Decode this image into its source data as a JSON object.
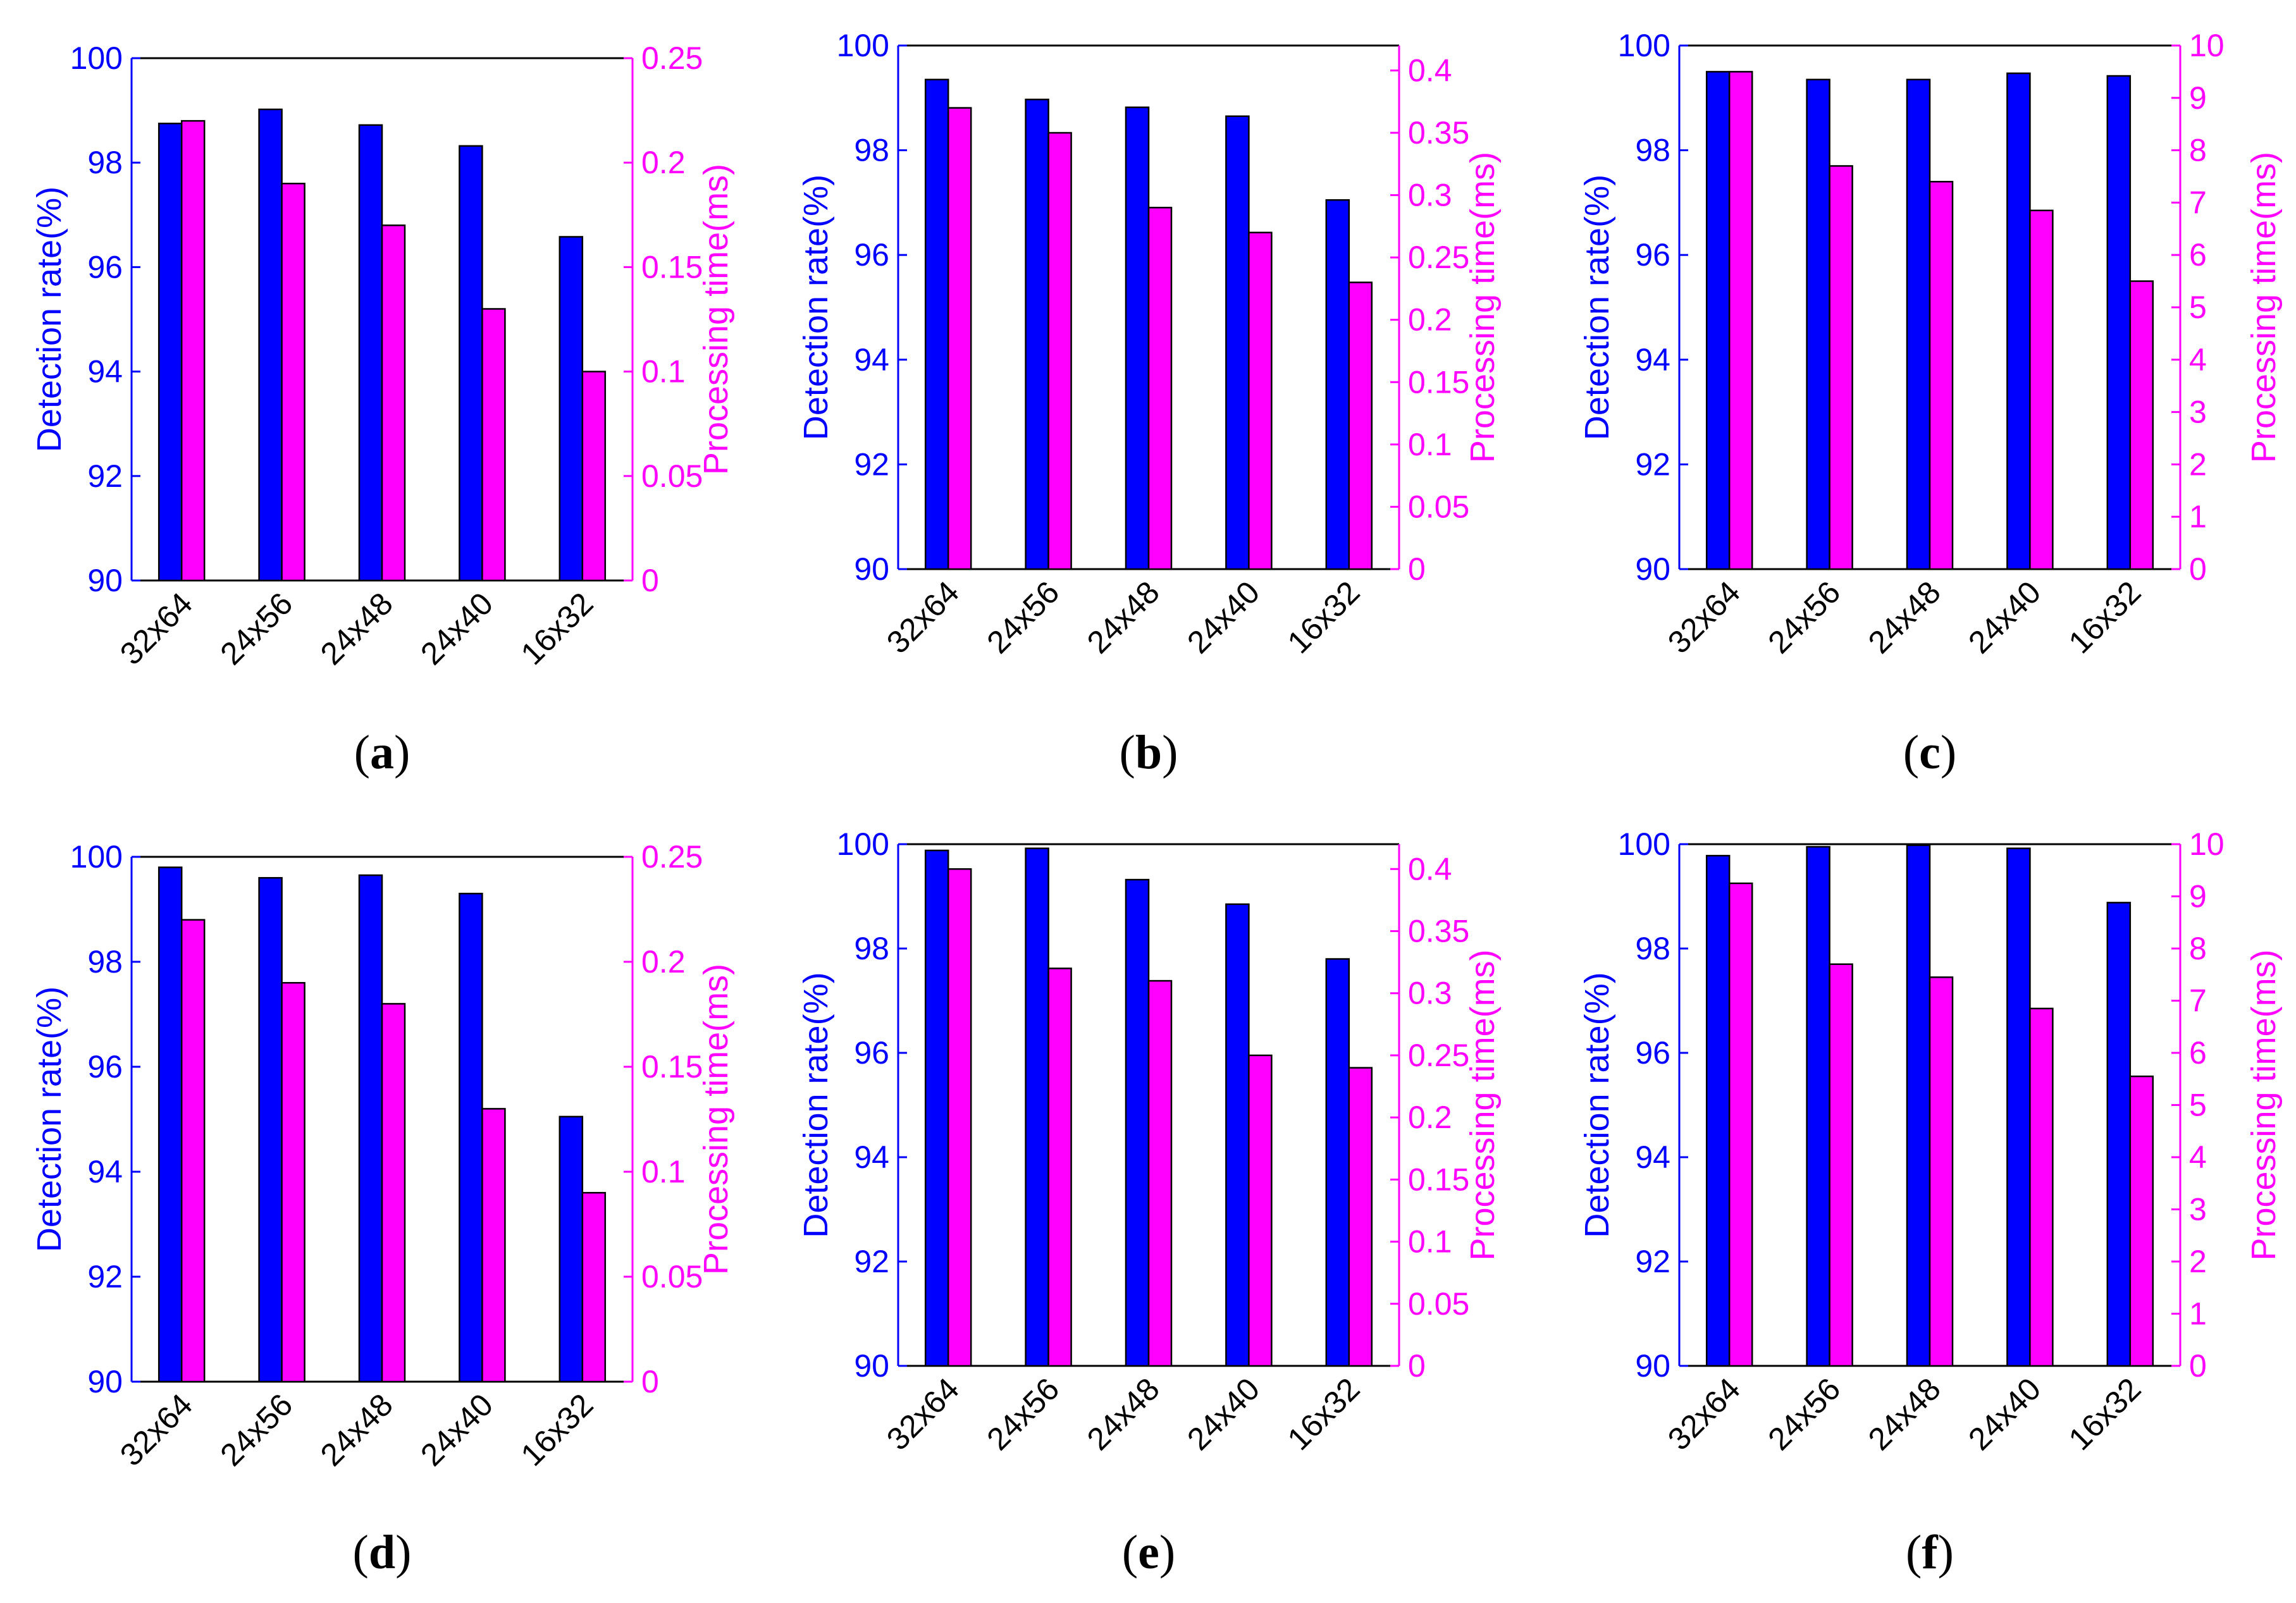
{
  "colors": {
    "detection": "#0000ff",
    "processing": "#ff00ff",
    "axis_left": "#0000ff",
    "axis_right": "#ff00ff",
    "frame": "#000000",
    "background": "#ffffff"
  },
  "chart_data": [
    {
      "type": "bar",
      "panel_label": "a",
      "categories": [
        "32x64",
        "24x56",
        "24x48",
        "24x40",
        "16x32"
      ],
      "series": [
        {
          "name": "Detection rate",
          "axis": "left",
          "values": [
            98.75,
            99.02,
            98.72,
            98.32,
            96.58
          ]
        },
        {
          "name": "Processing time",
          "axis": "right",
          "values": [
            0.22,
            0.19,
            0.17,
            0.13,
            0.1
          ]
        }
      ],
      "ylabel": "Detection rate(%)",
      "y2label": "Processing time(ms)",
      "ylim": [
        90,
        100
      ],
      "y2lim": [
        0,
        0.25
      ],
      "yticks": [
        "90",
        "92",
        "94",
        "96",
        "98",
        "100"
      ],
      "y2ticks": [
        "0",
        "0.05",
        "0.1",
        "0.15",
        "0.2",
        "0.25"
      ]
    },
    {
      "type": "bar",
      "panel_label": "b",
      "categories": [
        "32x64",
        "24x56",
        "24x48",
        "24x40",
        "16x32"
      ],
      "series": [
        {
          "name": "Detection rate",
          "axis": "left",
          "values": [
            99.35,
            98.97,
            98.82,
            98.65,
            97.05
          ]
        },
        {
          "name": "Processing time",
          "axis": "right",
          "values": [
            0.37,
            0.35,
            0.29,
            0.27,
            0.23
          ]
        }
      ],
      "ylabel": "Detection rate(%)",
      "y2label": "Processing time(ms)",
      "ylim": [
        90,
        100
      ],
      "y2lim": [
        0,
        0.42
      ],
      "yticks": [
        "90",
        "92",
        "94",
        "96",
        "98",
        "100"
      ],
      "y2ticks": [
        "0",
        "0.05",
        "0.1",
        "0.15",
        "0.2",
        "0.25",
        "0.3",
        "0.35",
        "0.4"
      ]
    },
    {
      "type": "bar",
      "panel_label": "c",
      "categories": [
        "32x64",
        "24x56",
        "24x48",
        "24x40",
        "16x32"
      ],
      "series": [
        {
          "name": "Detection rate",
          "axis": "left",
          "values": [
            99.5,
            99.35,
            99.35,
            99.47,
            99.42
          ]
        },
        {
          "name": "Processing time",
          "axis": "right",
          "values": [
            9.5,
            7.7,
            7.4,
            6.85,
            5.5
          ]
        }
      ],
      "ylabel": "Detection rate(%)",
      "y2label": "Processing time(ms)",
      "ylim": [
        90,
        100
      ],
      "y2lim": [
        0,
        10
      ],
      "yticks": [
        "90",
        "92",
        "94",
        "96",
        "98",
        "100"
      ],
      "y2ticks": [
        "0",
        "1",
        "2",
        "3",
        "4",
        "5",
        "6",
        "7",
        "8",
        "9",
        "10"
      ]
    },
    {
      "type": "bar",
      "panel_label": "d",
      "categories": [
        "32x64",
        "24x56",
        "24x48",
        "24x40",
        "16x32"
      ],
      "series": [
        {
          "name": "Detection rate",
          "axis": "left",
          "values": [
            99.8,
            99.6,
            99.65,
            99.3,
            95.05
          ]
        },
        {
          "name": "Processing time",
          "axis": "right",
          "values": [
            0.22,
            0.19,
            0.18,
            0.13,
            0.09
          ]
        }
      ],
      "ylabel": "Detection rate(%)",
      "y2label": "Processing time(ms)",
      "ylim": [
        90,
        100
      ],
      "y2lim": [
        0,
        0.25
      ],
      "yticks": [
        "90",
        "92",
        "94",
        "96",
        "98",
        "100"
      ],
      "y2ticks": [
        "0",
        "0.05",
        "0.1",
        "0.15",
        "0.2",
        "0.25"
      ]
    },
    {
      "type": "bar",
      "panel_label": "e",
      "categories": [
        "32x64",
        "24x56",
        "24x48",
        "24x40",
        "16x32"
      ],
      "series": [
        {
          "name": "Detection rate",
          "axis": "left",
          "values": [
            99.88,
            99.92,
            99.32,
            98.85,
            97.8
          ]
        },
        {
          "name": "Processing time",
          "axis": "right",
          "values": [
            0.4,
            0.32,
            0.31,
            0.25,
            0.24
          ]
        }
      ],
      "ylabel": "Detection rate(%)",
      "y2label": "Processing time(ms)",
      "ylim": [
        90,
        100
      ],
      "y2lim": [
        0,
        0.42
      ],
      "yticks": [
        "90",
        "92",
        "94",
        "96",
        "98",
        "100"
      ],
      "y2ticks": [
        "0",
        "0.05",
        "0.1",
        "0.15",
        "0.2",
        "0.25",
        "0.3",
        "0.35",
        "0.4"
      ]
    },
    {
      "type": "bar",
      "panel_label": "f",
      "categories": [
        "32x64",
        "24x56",
        "24x48",
        "24x40",
        "16x32"
      ],
      "series": [
        {
          "name": "Detection rate",
          "axis": "left",
          "values": [
            99.78,
            99.95,
            99.98,
            99.92,
            98.88
          ]
        },
        {
          "name": "Processing time",
          "axis": "right",
          "values": [
            9.25,
            7.7,
            7.45,
            6.85,
            5.55
          ]
        }
      ],
      "ylabel": "Detection rate(%)",
      "y2label": "Processing time(ms)",
      "ylim": [
        90,
        100
      ],
      "y2lim": [
        0,
        10
      ],
      "yticks": [
        "90",
        "92",
        "94",
        "96",
        "98",
        "100"
      ],
      "y2ticks": [
        "0",
        "1",
        "2",
        "3",
        "4",
        "5",
        "6",
        "7",
        "8",
        "9",
        "10"
      ]
    }
  ]
}
